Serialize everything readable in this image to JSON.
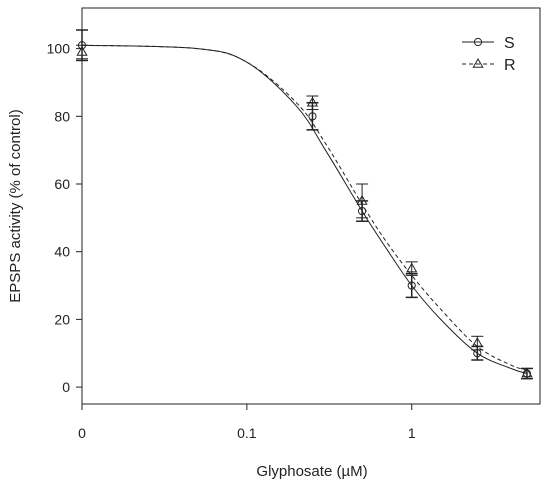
{
  "chart_data": {
    "type": "scatter",
    "xlabel": "Glyphosate (µM)",
    "ylabel": "EPSPS activity (% of control)",
    "x_scale": "log",
    "x_range": [
      0.01,
      6
    ],
    "y_range": [
      -5,
      112
    ],
    "x_ticks": [
      {
        "value": 0.01,
        "label": "0"
      },
      {
        "value": 0.1,
        "label": "0.1"
      },
      {
        "value": 1,
        "label": "1"
      }
    ],
    "y_ticks": [
      {
        "value": 0,
        "label": "0"
      },
      {
        "value": 20,
        "label": "20"
      },
      {
        "value": 40,
        "label": "40"
      },
      {
        "value": 60,
        "label": "60"
      },
      {
        "value": 80,
        "label": "80"
      },
      {
        "value": 100,
        "label": "100"
      }
    ],
    "grid": false,
    "legend_position": "top-right",
    "series": [
      {
        "name": "S",
        "marker": "circle",
        "line": "solid",
        "points": [
          {
            "x": 0.01,
            "y": 101,
            "err": 4.5
          },
          {
            "x": 0.25,
            "y": 80,
            "err": 4
          },
          {
            "x": 0.5,
            "y": 52,
            "err": 3
          },
          {
            "x": 1,
            "y": 30,
            "err": 3.5
          },
          {
            "x": 2.5,
            "y": 10,
            "err": 2
          },
          {
            "x": 5,
            "y": 4,
            "err": 1.5
          }
        ],
        "curve": [
          [
            0.01,
            101
          ],
          [
            0.05,
            100
          ],
          [
            0.1,
            96
          ],
          [
            0.2,
            83
          ],
          [
            0.3,
            70
          ],
          [
            0.5,
            52
          ],
          [
            0.7,
            41
          ],
          [
            1,
            30
          ],
          [
            1.5,
            20
          ],
          [
            2.5,
            10
          ],
          [
            4,
            5.5
          ],
          [
            5,
            4
          ]
        ]
      },
      {
        "name": "R",
        "marker": "triangle",
        "line": "dashed",
        "points": [
          {
            "x": 0.01,
            "y": 99,
            "err": 2
          },
          {
            "x": 0.25,
            "y": 84,
            "err": 2
          },
          {
            "x": 0.5,
            "y": 55,
            "err": 5
          },
          {
            "x": 1,
            "y": 35,
            "err": 2
          },
          {
            "x": 2.5,
            "y": 13,
            "err": 2
          },
          {
            "x": 5,
            "y": 4,
            "err": 1.5
          }
        ],
        "curve": [
          [
            0.01,
            101
          ],
          [
            0.05,
            100
          ],
          [
            0.1,
            96
          ],
          [
            0.2,
            84
          ],
          [
            0.3,
            72
          ],
          [
            0.5,
            54
          ],
          [
            0.7,
            43
          ],
          [
            1,
            33
          ],
          [
            1.5,
            23
          ],
          [
            2.5,
            12
          ],
          [
            4,
            6.5
          ],
          [
            5,
            5
          ]
        ]
      }
    ]
  }
}
